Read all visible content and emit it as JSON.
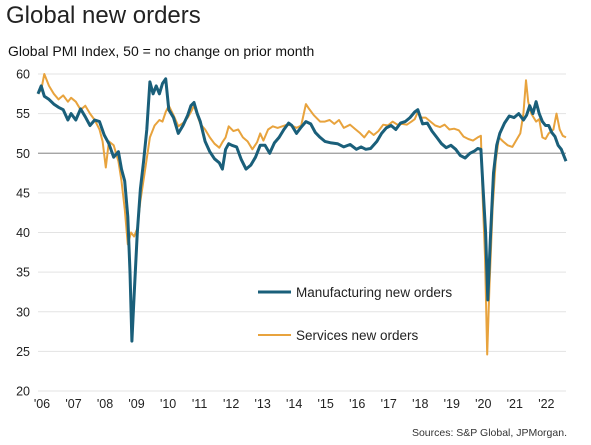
{
  "title": "Global new orders",
  "subtitle": "Global PMI Index, 50 = no change on prior month",
  "source": "Sources: S&P Global, JPMorgan.",
  "chart_data": {
    "type": "line",
    "ylim": [
      20,
      60
    ],
    "yticks": [
      20,
      25,
      30,
      35,
      40,
      45,
      50,
      55,
      60
    ],
    "xlim": [
      2006.0,
      2022.75
    ],
    "xticks": [
      {
        "x": 2006,
        "label": "'06"
      },
      {
        "x": 2007,
        "label": "'07"
      },
      {
        "x": 2008,
        "label": "'08"
      },
      {
        "x": 2009,
        "label": "'09"
      },
      {
        "x": 2010,
        "label": "'10"
      },
      {
        "x": 2011,
        "label": "'11"
      },
      {
        "x": 2012,
        "label": "'12"
      },
      {
        "x": 2013,
        "label": "'13"
      },
      {
        "x": 2014,
        "label": "'14"
      },
      {
        "x": 2015,
        "label": "'15"
      },
      {
        "x": 2016,
        "label": "'16"
      },
      {
        "x": 2017,
        "label": "'17"
      },
      {
        "x": 2018,
        "label": "'18"
      },
      {
        "x": 2019,
        "label": "'19"
      },
      {
        "x": 2020,
        "label": "'20"
      },
      {
        "x": 2021,
        "label": "'21"
      },
      {
        "x": 2022,
        "label": "'22"
      }
    ],
    "reference_line": 50,
    "series": [
      {
        "name": "Manufacturing new orders",
        "color": "#1a5f7a",
        "points": [
          [
            2006.0,
            57.5
          ],
          [
            2006.1,
            58.5
          ],
          [
            2006.2,
            57.2
          ],
          [
            2006.35,
            56.8
          ],
          [
            2006.5,
            56.2
          ],
          [
            2006.65,
            55.8
          ],
          [
            2006.8,
            55.5
          ],
          [
            2006.95,
            54.2
          ],
          [
            2007.05,
            55.0
          ],
          [
            2007.2,
            54.2
          ],
          [
            2007.35,
            55.6
          ],
          [
            2007.5,
            54.6
          ],
          [
            2007.65,
            53.5
          ],
          [
            2007.8,
            54.2
          ],
          [
            2007.95,
            54.0
          ],
          [
            2008.1,
            52.3
          ],
          [
            2008.25,
            51.2
          ],
          [
            2008.4,
            49.5
          ],
          [
            2008.55,
            50.2
          ],
          [
            2008.65,
            48.0
          ],
          [
            2008.75,
            46.5
          ],
          [
            2008.85,
            42.0
          ],
          [
            2008.92,
            35.0
          ],
          [
            2008.98,
            26.3
          ],
          [
            2009.05,
            32.0
          ],
          [
            2009.15,
            40.0
          ],
          [
            2009.25,
            45.5
          ],
          [
            2009.35,
            49.0
          ],
          [
            2009.45,
            53.0
          ],
          [
            2009.55,
            59.0
          ],
          [
            2009.65,
            57.5
          ],
          [
            2009.75,
            58.5
          ],
          [
            2009.85,
            57.5
          ],
          [
            2009.95,
            58.8
          ],
          [
            2010.05,
            59.4
          ],
          [
            2010.15,
            55.5
          ],
          [
            2010.3,
            54.5
          ],
          [
            2010.45,
            52.5
          ],
          [
            2010.6,
            53.5
          ],
          [
            2010.75,
            54.8
          ],
          [
            2010.85,
            56.0
          ],
          [
            2010.95,
            56.4
          ],
          [
            2011.05,
            55.0
          ],
          [
            2011.15,
            54.0
          ],
          [
            2011.3,
            51.5
          ],
          [
            2011.45,
            50.2
          ],
          [
            2011.6,
            49.3
          ],
          [
            2011.75,
            48.8
          ],
          [
            2011.85,
            48.0
          ],
          [
            2011.95,
            50.5
          ],
          [
            2012.05,
            51.2
          ],
          [
            2012.15,
            51.0
          ],
          [
            2012.3,
            50.8
          ],
          [
            2012.45,
            49.2
          ],
          [
            2012.6,
            48.0
          ],
          [
            2012.75,
            48.5
          ],
          [
            2012.9,
            49.5
          ],
          [
            2013.05,
            51.0
          ],
          [
            2013.2,
            51.0
          ],
          [
            2013.35,
            50.0
          ],
          [
            2013.5,
            51.3
          ],
          [
            2013.65,
            52.0
          ],
          [
            2013.8,
            53.0
          ],
          [
            2013.95,
            53.8
          ],
          [
            2014.05,
            53.5
          ],
          [
            2014.2,
            52.5
          ],
          [
            2014.35,
            53.3
          ],
          [
            2014.5,
            54.0
          ],
          [
            2014.65,
            53.7
          ],
          [
            2014.8,
            52.6
          ],
          [
            2014.95,
            52.0
          ],
          [
            2015.1,
            51.5
          ],
          [
            2015.3,
            51.3
          ],
          [
            2015.5,
            51.2
          ],
          [
            2015.7,
            50.8
          ],
          [
            2015.9,
            51.1
          ],
          [
            2016.1,
            50.5
          ],
          [
            2016.25,
            50.8
          ],
          [
            2016.4,
            50.5
          ],
          [
            2016.55,
            50.6
          ],
          [
            2016.75,
            51.5
          ],
          [
            2016.9,
            52.5
          ],
          [
            2017.05,
            53.2
          ],
          [
            2017.2,
            53.5
          ],
          [
            2017.35,
            53.0
          ],
          [
            2017.5,
            53.8
          ],
          [
            2017.65,
            54.0
          ],
          [
            2017.8,
            54.5
          ],
          [
            2017.95,
            55.2
          ],
          [
            2018.05,
            55.5
          ],
          [
            2018.2,
            53.7
          ],
          [
            2018.35,
            53.8
          ],
          [
            2018.5,
            52.8
          ],
          [
            2018.65,
            52.0
          ],
          [
            2018.8,
            51.2
          ],
          [
            2018.95,
            50.7
          ],
          [
            2019.1,
            51.0
          ],
          [
            2019.25,
            50.5
          ],
          [
            2019.4,
            49.7
          ],
          [
            2019.55,
            49.4
          ],
          [
            2019.7,
            50.0
          ],
          [
            2019.85,
            50.3
          ],
          [
            2019.95,
            50.6
          ],
          [
            2020.05,
            50.5
          ],
          [
            2020.12,
            45.5
          ],
          [
            2020.2,
            40.0
          ],
          [
            2020.27,
            31.5
          ],
          [
            2020.35,
            39.0
          ],
          [
            2020.45,
            47.5
          ],
          [
            2020.55,
            51.0
          ],
          [
            2020.65,
            52.5
          ],
          [
            2020.8,
            53.8
          ],
          [
            2020.95,
            54.7
          ],
          [
            2021.1,
            54.5
          ],
          [
            2021.25,
            55.0
          ],
          [
            2021.4,
            54.2
          ],
          [
            2021.5,
            54.8
          ],
          [
            2021.6,
            56.0
          ],
          [
            2021.7,
            55.0
          ],
          [
            2021.8,
            56.5
          ],
          [
            2021.9,
            55.0
          ],
          [
            2022.0,
            54.0
          ],
          [
            2022.1,
            53.5
          ],
          [
            2022.2,
            53.5
          ],
          [
            2022.3,
            52.6
          ],
          [
            2022.4,
            52.1
          ],
          [
            2022.5,
            51.0
          ],
          [
            2022.6,
            50.5
          ],
          [
            2022.7,
            49.5
          ],
          [
            2022.75,
            49.0
          ]
        ]
      },
      {
        "name": "Services new orders",
        "color": "#e8a33d",
        "points": [
          [
            2006.0,
            57.5
          ],
          [
            2006.1,
            58.0
          ],
          [
            2006.2,
            60.0
          ],
          [
            2006.35,
            58.5
          ],
          [
            2006.5,
            57.5
          ],
          [
            2006.65,
            56.8
          ],
          [
            2006.8,
            57.3
          ],
          [
            2006.95,
            56.5
          ],
          [
            2007.05,
            57.0
          ],
          [
            2007.2,
            56.5
          ],
          [
            2007.35,
            55.5
          ],
          [
            2007.5,
            56.0
          ],
          [
            2007.65,
            55.0
          ],
          [
            2007.8,
            54.2
          ],
          [
            2007.95,
            53.0
          ],
          [
            2008.05,
            51.5
          ],
          [
            2008.15,
            48.2
          ],
          [
            2008.25,
            51.5
          ],
          [
            2008.4,
            51.0
          ],
          [
            2008.55,
            49.0
          ],
          [
            2008.65,
            46.5
          ],
          [
            2008.75,
            43.0
          ],
          [
            2008.85,
            38.5
          ],
          [
            2008.95,
            40.0
          ],
          [
            2009.05,
            39.5
          ],
          [
            2009.15,
            40.5
          ],
          [
            2009.25,
            44.0
          ],
          [
            2009.4,
            48.0
          ],
          [
            2009.55,
            52.0
          ],
          [
            2009.7,
            53.5
          ],
          [
            2009.85,
            54.2
          ],
          [
            2009.95,
            54.0
          ],
          [
            2010.05,
            55.2
          ],
          [
            2010.15,
            56.0
          ],
          [
            2010.3,
            54.8
          ],
          [
            2010.45,
            53.4
          ],
          [
            2010.6,
            53.8
          ],
          [
            2010.75,
            54.5
          ],
          [
            2010.85,
            55.2
          ],
          [
            2010.95,
            56.0
          ],
          [
            2011.05,
            54.8
          ],
          [
            2011.15,
            53.7
          ],
          [
            2011.3,
            53.0
          ],
          [
            2011.45,
            52.0
          ],
          [
            2011.6,
            51.2
          ],
          [
            2011.75,
            50.7
          ],
          [
            2011.85,
            51.4
          ],
          [
            2011.95,
            52.0
          ],
          [
            2012.05,
            53.4
          ],
          [
            2012.2,
            52.8
          ],
          [
            2012.35,
            53.0
          ],
          [
            2012.5,
            52.0
          ],
          [
            2012.65,
            51.5
          ],
          [
            2012.8,
            50.5
          ],
          [
            2012.95,
            51.4
          ],
          [
            2013.05,
            52.5
          ],
          [
            2013.15,
            51.6
          ],
          [
            2013.3,
            53.0
          ],
          [
            2013.45,
            53.4
          ],
          [
            2013.6,
            53.2
          ],
          [
            2013.75,
            53.4
          ],
          [
            2013.9,
            53.6
          ],
          [
            2014.05,
            53.5
          ],
          [
            2014.2,
            53.2
          ],
          [
            2014.35,
            53.5
          ],
          [
            2014.5,
            56.2
          ],
          [
            2014.6,
            55.6
          ],
          [
            2014.75,
            54.8
          ],
          [
            2014.95,
            54.0
          ],
          [
            2015.1,
            54.0
          ],
          [
            2015.25,
            54.2
          ],
          [
            2015.4,
            53.7
          ],
          [
            2015.55,
            54.2
          ],
          [
            2015.7,
            53.2
          ],
          [
            2015.9,
            53.6
          ],
          [
            2016.05,
            53.1
          ],
          [
            2016.2,
            52.6
          ],
          [
            2016.35,
            52.0
          ],
          [
            2016.5,
            52.8
          ],
          [
            2016.65,
            52.3
          ],
          [
            2016.8,
            52.8
          ],
          [
            2016.95,
            53.6
          ],
          [
            2017.1,
            53.5
          ],
          [
            2017.25,
            54.0
          ],
          [
            2017.4,
            53.6
          ],
          [
            2017.55,
            53.7
          ],
          [
            2017.7,
            53.6
          ],
          [
            2017.85,
            54.0
          ],
          [
            2017.95,
            54.3
          ],
          [
            2018.05,
            55.2
          ],
          [
            2018.15,
            54.5
          ],
          [
            2018.3,
            54.5
          ],
          [
            2018.45,
            54.0
          ],
          [
            2018.6,
            53.5
          ],
          [
            2018.75,
            53.3
          ],
          [
            2018.9,
            53.6
          ],
          [
            2019.05,
            53.0
          ],
          [
            2019.2,
            53.1
          ],
          [
            2019.35,
            52.9
          ],
          [
            2019.5,
            52.1
          ],
          [
            2019.65,
            51.8
          ],
          [
            2019.8,
            51.6
          ],
          [
            2019.95,
            52.0
          ],
          [
            2020.05,
            52.2
          ],
          [
            2020.1,
            45.0
          ],
          [
            2020.18,
            37.0
          ],
          [
            2020.25,
            24.6
          ],
          [
            2020.32,
            33.0
          ],
          [
            2020.42,
            43.0
          ],
          [
            2020.52,
            49.0
          ],
          [
            2020.62,
            52.0
          ],
          [
            2020.75,
            51.5
          ],
          [
            2020.9,
            51.0
          ],
          [
            2021.05,
            50.8
          ],
          [
            2021.15,
            51.5
          ],
          [
            2021.3,
            52.5
          ],
          [
            2021.4,
            55.0
          ],
          [
            2021.48,
            59.2
          ],
          [
            2021.55,
            56.5
          ],
          [
            2021.65,
            55.0
          ],
          [
            2021.8,
            54.0
          ],
          [
            2021.9,
            54.3
          ],
          [
            2022.0,
            52.0
          ],
          [
            2022.1,
            51.8
          ],
          [
            2022.2,
            52.5
          ],
          [
            2022.35,
            53.0
          ],
          [
            2022.45,
            55.0
          ],
          [
            2022.55,
            53.0
          ],
          [
            2022.65,
            52.2
          ],
          [
            2022.75,
            52.0
          ]
        ]
      }
    ],
    "legend": "center-right"
  }
}
